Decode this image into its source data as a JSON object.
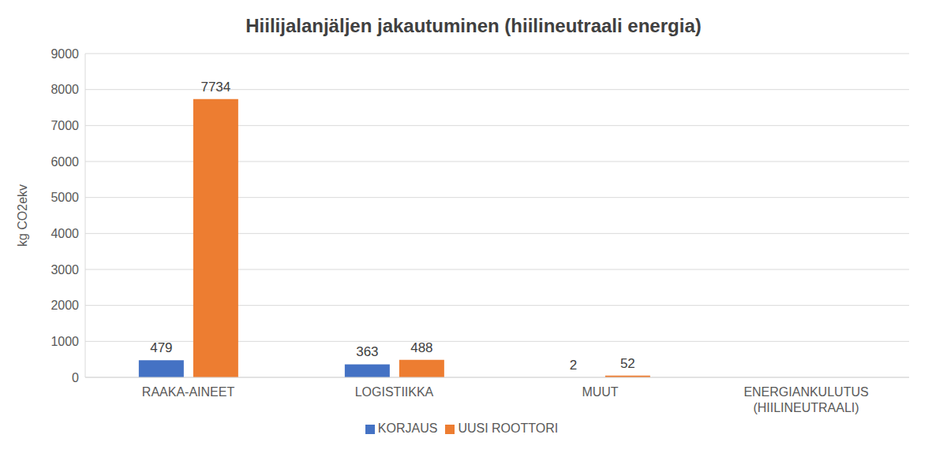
{
  "chart_data": {
    "type": "bar",
    "title": "Hiilijalanjäljen jakautuminen (hiilineutraali energia)",
    "y_label": "kg CO2ekv",
    "categories": [
      "RAAKA-AINEET",
      "LOGISTIIKKA",
      "MUUT",
      "ENERGIANKULUTUS (HIILINEUTRAALI)"
    ],
    "series": [
      {
        "name": "KORJAUS",
        "color": "#4472c4",
        "values": [
          479,
          363,
          2,
          0
        ]
      },
      {
        "name": "UUSI ROOTTORI",
        "color": "#ed7d31",
        "values": [
          7734,
          488,
          52,
          0
        ]
      }
    ],
    "ylim": [
      0,
      9000
    ],
    "yticks": [
      0,
      1000,
      2000,
      3000,
      4000,
      5000,
      6000,
      7000,
      8000,
      9000
    ],
    "grid": true,
    "legend": "bottom",
    "data_labels": true
  }
}
